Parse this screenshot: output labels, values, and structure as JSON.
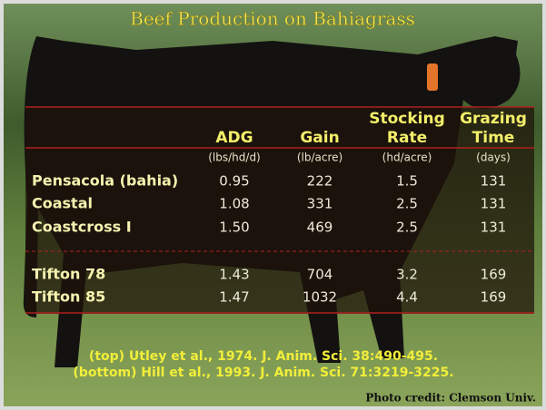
{
  "header": {
    "title": "Beef Production on Bahiagrass"
  },
  "table": {
    "headers": [
      [
        "ADG"
      ],
      [
        "Gain"
      ],
      [
        "Stocking",
        "Rate"
      ],
      [
        "Grazing",
        "Time"
      ]
    ],
    "units": [
      "(lbs/hd/d)",
      "(lb/acre)",
      "(hd/acre)",
      "(days)"
    ],
    "rows": [
      [
        "Pensacola (bahia)",
        "0.95",
        "222",
        "1.5",
        "131"
      ],
      [
        "Coastal",
        "1.08",
        "331",
        "2.5",
        "131"
      ],
      [
        "Coastcross I",
        "1.50",
        "469",
        "2.5",
        "131"
      ],
      [
        "Tifton 78",
        "1.43",
        "704",
        "3.2",
        "169"
      ],
      [
        "Tifton 85",
        "1.47",
        "1032",
        "4.4",
        "169"
      ]
    ]
  },
  "citations": [
    "(top) Utley et al., 1974. J. Anim. Sci. 38:490-495.",
    "(bottom) Hill et al., 1993. J. Anim. Sci. 71:3219-3225."
  ],
  "credit": "Photo credit: Clemson Univ."
}
